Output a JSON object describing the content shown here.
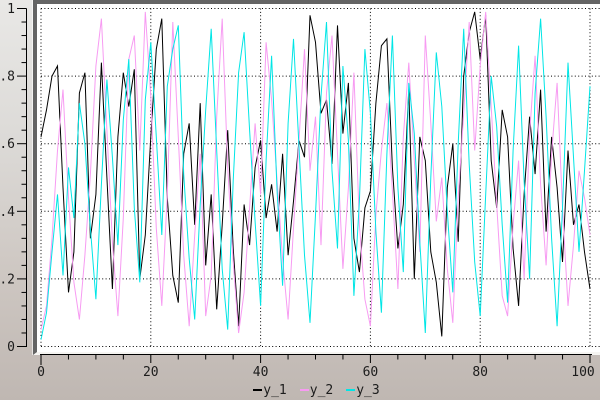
{
  "window": {
    "bg_top": "#e9e8e6",
    "bg_bottom": "#bfb7b2",
    "plot_bg": "#ffffff",
    "border_dark": "#646464",
    "border_light": "#f6f5f2",
    "grid_color": "#000000",
    "axis_color": "#000000",
    "text_color": "#1c1c1c"
  },
  "chart_data": {
    "type": "line",
    "title": "",
    "xlabel": "",
    "ylabel": "",
    "grid": "dotted",
    "x_range": [
      0,
      100
    ],
    "y_range": [
      0,
      1
    ],
    "x_tick_values": [
      0,
      20,
      40,
      60,
      80,
      100
    ],
    "x_tick_labels": [
      "0",
      "20",
      "40",
      "60",
      "80",
      "100"
    ],
    "x_minor_step": 5,
    "y_tick_values": [
      0,
      0.2,
      0.4,
      0.6,
      0.8,
      1
    ],
    "y_tick_labels": [
      "0",
      "0.2",
      "0.4",
      "0.6",
      "0.8",
      "1"
    ],
    "y_minor_step": 0.04,
    "legend_position": "bottom-center",
    "series": [
      {
        "name": "y_1",
        "color": "#000000",
        "values": [
          0.62,
          0.7,
          0.8,
          0.83,
          0.47,
          0.16,
          0.28,
          0.75,
          0.81,
          0.32,
          0.45,
          0.84,
          0.5,
          0.17,
          0.62,
          0.81,
          0.71,
          0.82,
          0.2,
          0.33,
          0.62,
          0.88,
          0.97,
          0.44,
          0.21,
          0.13,
          0.57,
          0.66,
          0.36,
          0.72,
          0.24,
          0.45,
          0.11,
          0.36,
          0.64,
          0.29,
          0.06,
          0.42,
          0.3,
          0.53,
          0.61,
          0.38,
          0.48,
          0.34,
          0.57,
          0.27,
          0.43,
          0.61,
          0.56,
          0.98,
          0.9,
          0.69,
          0.73,
          0.54,
          0.95,
          0.63,
          0.78,
          0.32,
          0.22,
          0.41,
          0.46,
          0.72,
          0.89,
          0.91,
          0.53,
          0.29,
          0.42,
          0.76,
          0.2,
          0.62,
          0.55,
          0.28,
          0.19,
          0.03,
          0.47,
          0.6,
          0.31,
          0.8,
          0.93,
          0.99,
          0.85,
          0.98,
          0.55,
          0.41,
          0.7,
          0.62,
          0.29,
          0.12,
          0.45,
          0.68,
          0.51,
          0.76,
          0.34,
          0.62,
          0.47,
          0.25,
          0.58,
          0.36,
          0.42,
          0.28,
          0.17
        ]
      },
      {
        "name": "y_2",
        "color": "#f79bf2",
        "values": [
          0.05,
          0.12,
          0.32,
          0.58,
          0.76,
          0.44,
          0.19,
          0.08,
          0.27,
          0.51,
          0.83,
          0.97,
          0.64,
          0.31,
          0.09,
          0.38,
          0.85,
          0.92,
          0.58,
          0.99,
          0.74,
          0.35,
          0.12,
          0.45,
          0.96,
          0.62,
          0.27,
          0.06,
          0.33,
          0.57,
          0.09,
          0.21,
          0.68,
          0.97,
          0.53,
          0.25,
          0.04,
          0.16,
          0.41,
          0.66,
          0.45,
          0.9,
          0.73,
          0.49,
          0.26,
          0.08,
          0.35,
          0.61,
          0.88,
          0.52,
          0.68,
          0.3,
          0.75,
          0.92,
          0.57,
          0.23,
          0.47,
          0.81,
          0.36,
          0.14,
          0.06,
          0.39,
          0.58,
          0.72,
          0.46,
          0.17,
          0.62,
          0.84,
          0.55,
          0.28,
          0.92,
          0.66,
          0.37,
          0.5,
          0.23,
          0.07,
          0.44,
          0.69,
          0.96,
          0.58,
          0.83,
          0.99,
          0.71,
          0.42,
          0.15,
          0.09,
          0.36,
          0.55,
          0.2,
          0.63,
          0.86,
          0.48,
          0.24,
          0.57,
          0.78,
          0.41,
          0.12,
          0.3,
          0.52,
          0.44,
          0.33
        ]
      },
      {
        "name": "y_3",
        "color": "#00e6e6",
        "values": [
          0.02,
          0.1,
          0.28,
          0.45,
          0.21,
          0.53,
          0.38,
          0.72,
          0.6,
          0.35,
          0.14,
          0.48,
          0.79,
          0.56,
          0.3,
          0.67,
          0.85,
          0.41,
          0.19,
          0.73,
          0.9,
          0.62,
          0.33,
          0.77,
          0.88,
          0.95,
          0.51,
          0.26,
          0.08,
          0.42,
          0.7,
          0.94,
          0.58,
          0.23,
          0.05,
          0.49,
          0.81,
          0.93,
          0.64,
          0.37,
          0.12,
          0.55,
          0.86,
          0.46,
          0.18,
          0.66,
          0.91,
          0.59,
          0.27,
          0.07,
          0.39,
          0.74,
          0.96,
          0.52,
          0.29,
          0.83,
          0.61,
          0.15,
          0.43,
          0.88,
          0.69,
          0.34,
          0.1,
          0.57,
          0.92,
          0.47,
          0.22,
          0.78,
          0.63,
          0.31,
          0.04,
          0.5,
          0.87,
          0.71,
          0.4,
          0.16,
          0.6,
          0.94,
          0.54,
          0.25,
          0.09,
          0.45,
          0.8,
          0.65,
          0.36,
          0.13,
          0.58,
          0.89,
          0.49,
          0.2,
          0.75,
          0.97,
          0.68,
          0.32,
          0.06,
          0.41,
          0.84,
          0.56,
          0.28,
          0.52,
          0.77
        ]
      }
    ]
  },
  "legend": {
    "items": [
      {
        "label": "y_1"
      },
      {
        "label": "y_2"
      },
      {
        "label": "y_3"
      }
    ]
  }
}
